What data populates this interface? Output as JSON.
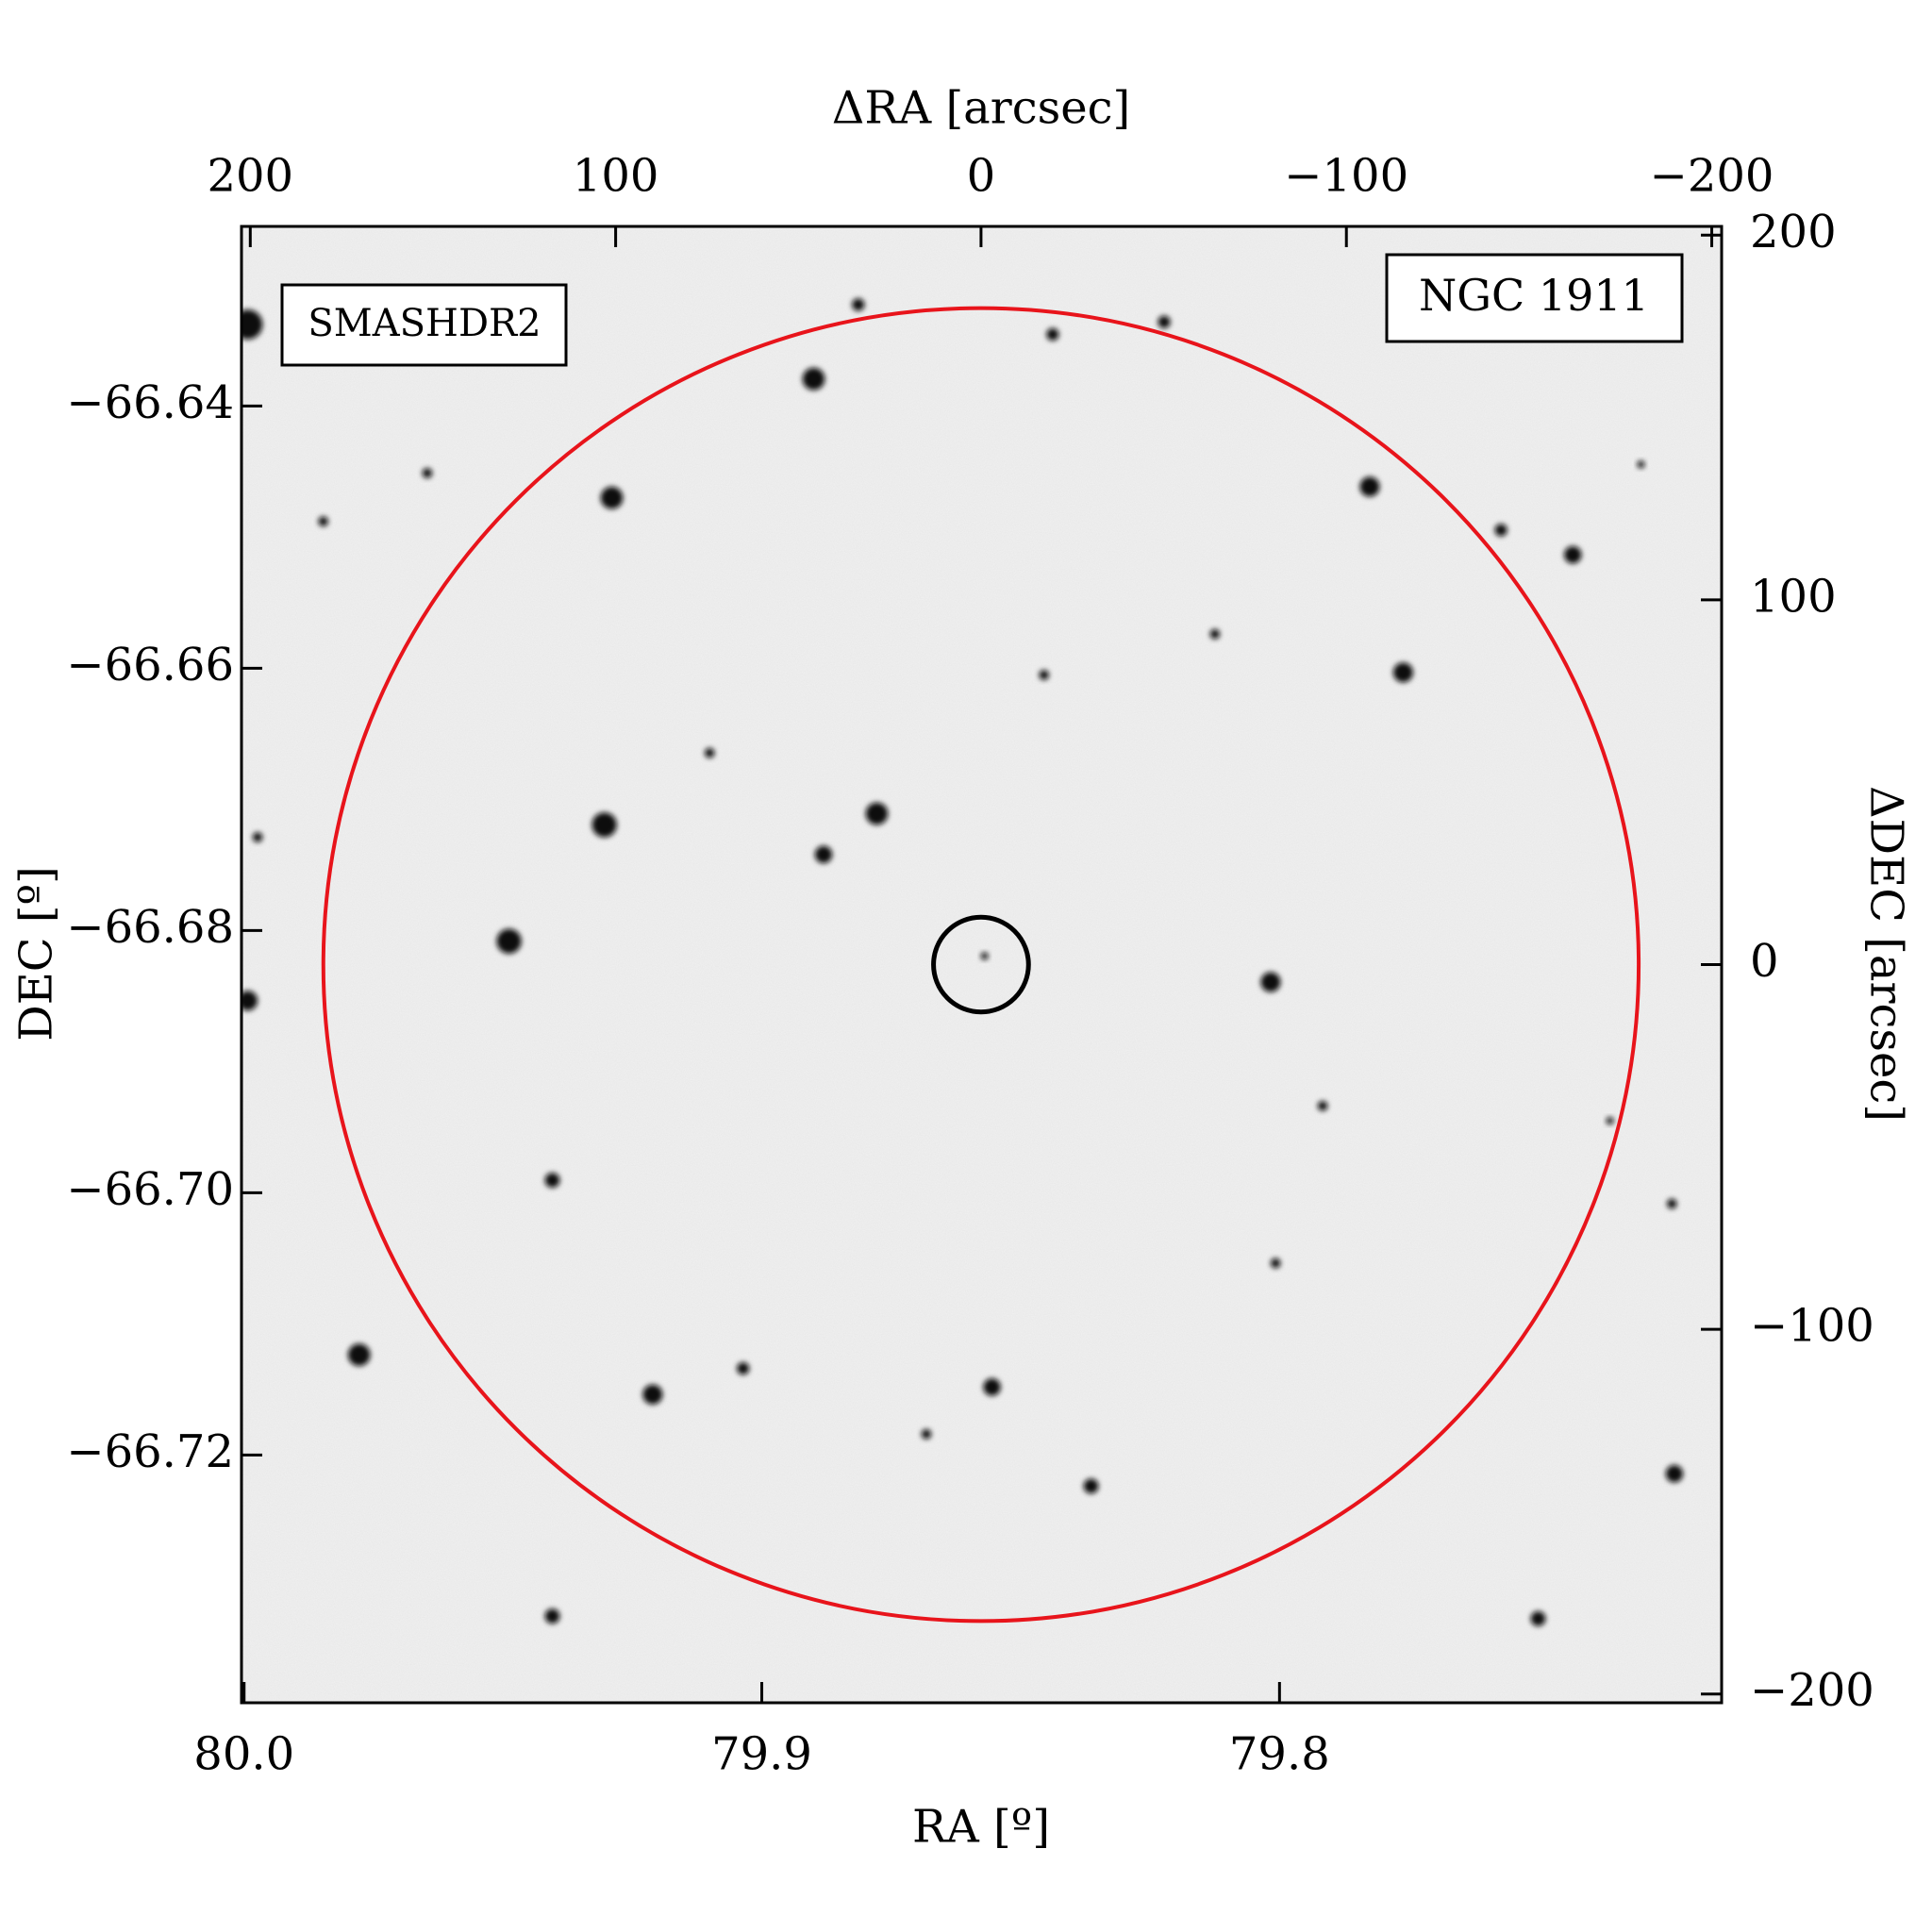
{
  "chart_data": {
    "type": "image",
    "xlabel": "RA [º]",
    "xlim": [
      80.0005,
      79.7146
    ],
    "xticks": [
      {
        "value": 80.0,
        "label": "80.0"
      },
      79.9,
      79.8
    ],
    "x2label": "ΔRA [arcsec]",
    "x2lim": [
      202.4,
      -202.7
    ],
    "x2ticks": [
      200,
      100,
      0,
      {
        "value": -100,
        "label": "−100"
      },
      {
        "value": -200,
        "label": "−200"
      }
    ],
    "ylabel": "DEC [º]",
    "ylim": [
      -66.7389,
      -66.6263
    ],
    "yticks": [
      {
        "value": -66.64,
        "label": "−66.64"
      },
      {
        "value": -66.66,
        "label": "−66.66"
      },
      {
        "value": -66.68,
        "label": "−66.68"
      },
      {
        "value": -66.7,
        "label": "−66.70"
      },
      {
        "value": -66.72,
        "label": "−66.72"
      }
    ],
    "y2label": "ΔDEC [arcsec]",
    "y2lim": [
      -202.4,
      202.4
    ],
    "y2ticks": [
      200,
      100,
      0,
      {
        "value": -100,
        "label": "−100"
      },
      {
        "value": -200,
        "label": "−200"
      }
    ],
    "circles": [
      {
        "x": 0,
        "y": 0,
        "r": 180,
        "color": "#e8141b"
      },
      {
        "x": 0,
        "y": 0,
        "r": 13,
        "color": "#000000"
      }
    ],
    "annotations": [
      {
        "text": "SMASHDR2",
        "color": "#e8141b"
      },
      {
        "text": "NGC 1911",
        "color": "#000000"
      }
    ]
  }
}
